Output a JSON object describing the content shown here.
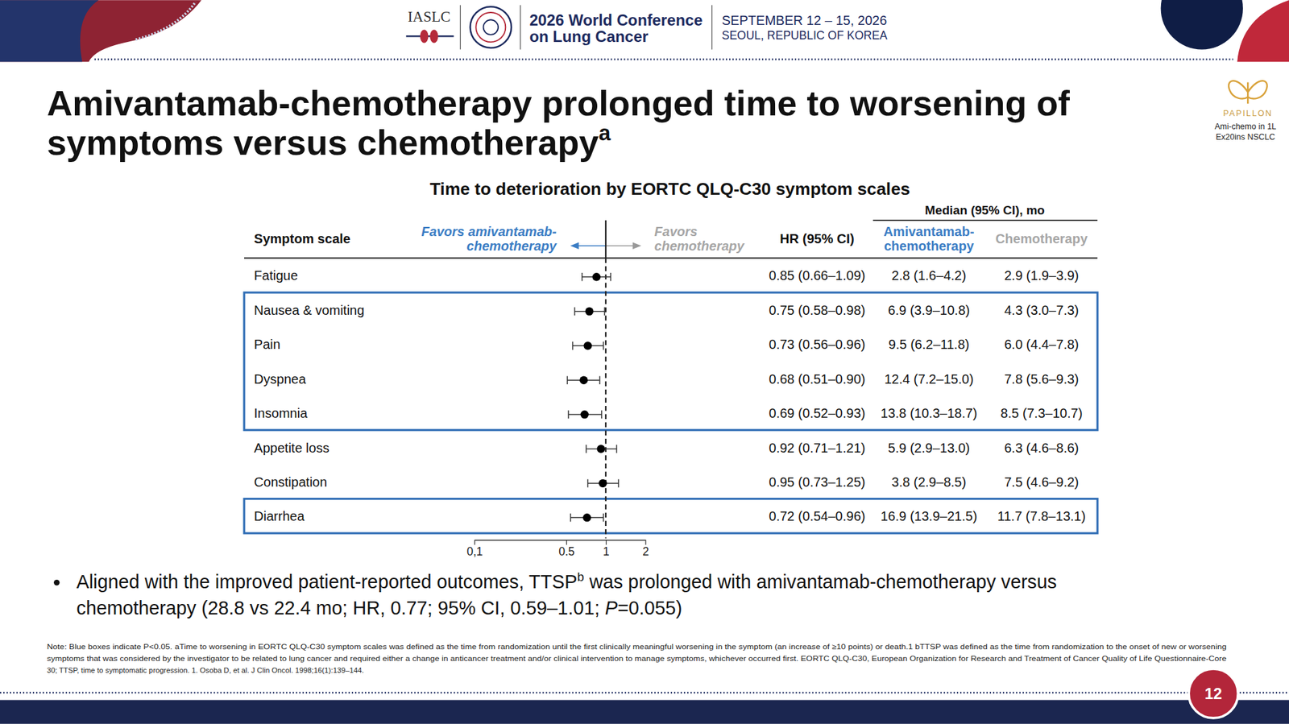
{
  "slide": {
    "conference": {
      "org": "IASLC",
      "name": [
        "2026 World Conference",
        "on Lung Cancer"
      ],
      "dates": "SEPTEMBER 12 – 15, 2026",
      "place": "SEOUL, REPUBLIC OF KOREA"
    },
    "title": [
      "Amivantamab-chemotherapy prolonged time to worsening of",
      "symptoms versus chemotherapy",
      "a"
    ],
    "logo": [
      "PAPILLON",
      "Ami-chemo in 1L",
      "Ex20ins NSCLC"
    ],
    "bullet": [
      [
        "Aligned with the improved patient-reported outcomes, TTSP",
        "b",
        " was prolonged with amivantamab-chemotherapy versus"
      ],
      [
        "chemotherapy (28.8 vs 22.4 mo; HR, 0.77; 95% CI, 0.59–1.01; ",
        "P",
        "=0.055)"
      ]
    ],
    "footnote": [
      "Note: Blue boxes indicate P<0.05. aTime to worsening in EORTC QLQ-C30 symptom scales was defined as the time from randomization until the first clinically meaningful worsening in the symptom (an increase of ≥10 points) or death.1 bTTSP was defined as the time from randomization to the onset of new or worsening",
      "symptoms that was considered by the investigator to be related to lung cancer and required either a change in anticancer treatment and/or clinical intervention to manage symptoms, whichever occurred first. EORTC QLQ-C30, European Organization for Research and Treatment of Cancer Quality of Life Questionnaire-Core",
      "30; TTSP, time to symptomatic progression. 1. Osoba D, et al. J Clin Oncol. 1998;16(1):139–144."
    ],
    "page": "12"
  },
  "chart_data": {
    "type": "forest",
    "title": "Time to deterioration by EORTC QLQ-C30 symptom scales",
    "orientation": "horizontal",
    "log": "x",
    "category_header": "Symptom scale",
    "favors_left": [
      "Favors amivantamab-",
      "chemotherapy"
    ],
    "favors_right": [
      "Favors",
      "chemotherapy"
    ],
    "hr_header": "HR (95% CI)",
    "median_header": "Median (95% CI), mo",
    "categories": [
      "Fatigue",
      "Nausea & vomiting",
      "Pain",
      "Dyspnea",
      "Insomnia",
      "Appetite loss",
      "Constipation",
      "Diarrhea"
    ],
    "values": [
      0.85,
      0.75,
      0.73,
      0.68,
      0.69,
      0.92,
      0.95,
      0.72
    ],
    "ci_low": [
      0.66,
      0.58,
      0.56,
      0.51,
      0.52,
      0.71,
      0.73,
      0.54
    ],
    "ci_high": [
      1.09,
      0.98,
      0.96,
      0.9,
      0.93,
      1.21,
      1.25,
      0.96
    ],
    "value_labels": [
      "0.85 (0.66–1.09)",
      "0.75 (0.58–0.98)",
      "0.73 (0.56–0.96)",
      "0.68 (0.51–0.90)",
      "0.69 (0.52–0.93)",
      "0.92 (0.71–1.21)",
      "0.95 (0.73–1.25)",
      "0.72 (0.54–0.96)"
    ],
    "median_columns": [
      {
        "header": [
          "Amivantamab-",
          "chemotherapy"
        ],
        "color": "#3b7dc4",
        "cells": [
          "2.8 (1.6–4.2)",
          "6.9 (3.9–10.8)",
          "9.5 (6.2–11.8)",
          "12.4 (7.2–15.0)",
          "13.8 (10.3–18.7)",
          "5.9 (2.9–13.0)",
          "3.8 (2.9–8.5)",
          "16.9 (13.9–21.5)"
        ]
      },
      {
        "header": [
          "Chemotherapy"
        ],
        "color": "#a6a6a6",
        "cells": [
          "2.9 (1.9–3.9)",
          "4.3 (3.0–7.3)",
          "6.0 (4.4–7.8)",
          "7.8 (5.6–9.3)",
          "8.5 (7.3–10.7)",
          "6.3 (4.6–8.6)",
          "7.5 (4.6–9.2)",
          "11.7 (7.8–13.1)"
        ]
      }
    ],
    "reference_line": 1,
    "xlim": [
      0.1,
      2
    ],
    "xticks": [
      {
        "value": 0.1,
        "label": "0,1"
      },
      0.5,
      1,
      2
    ],
    "color": "#000000"
  }
}
